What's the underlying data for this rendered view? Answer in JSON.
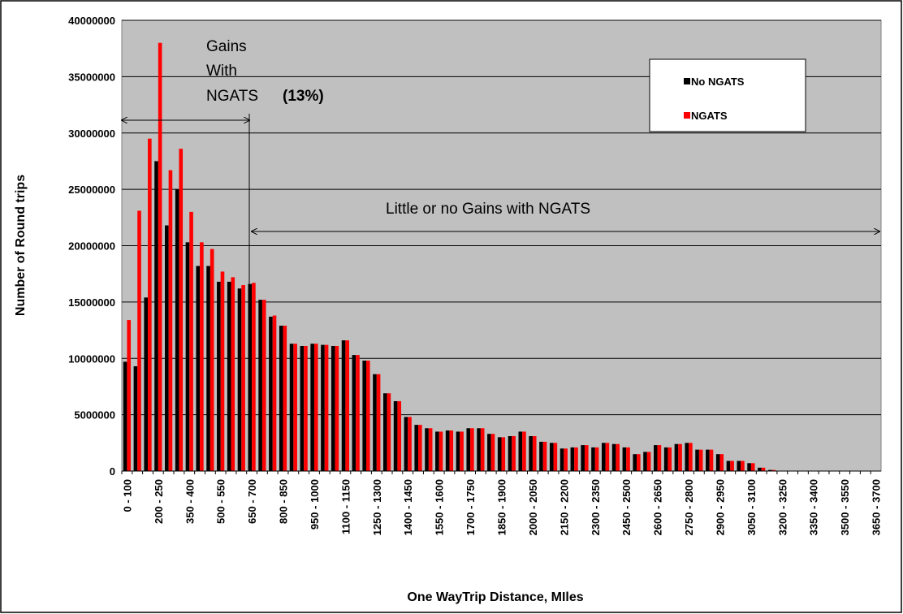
{
  "chart_data": {
    "type": "bar",
    "x_label": "One WayTrip Distance, MIles",
    "y_label": "Number of Round trips",
    "annotations": [
      "Gains",
      "With",
      "NGATS",
      "(13%)",
      "Little or no Gains with NGATS"
    ],
    "categories": [
      "0 - 100",
      null,
      null,
      "200 - 250",
      null,
      null,
      "350 - 400",
      null,
      null,
      "500 - 550",
      null,
      null,
      "650 - 700",
      null,
      null,
      "800 - 850",
      null,
      null,
      "950 - 1000",
      null,
      null,
      "1100 - 1150",
      null,
      null,
      "1250 - 1300",
      null,
      null,
      "1400 - 1450",
      null,
      null,
      "1550 - 1600",
      null,
      null,
      "1700 - 1750",
      null,
      null,
      "1850 - 1900",
      null,
      null,
      "2000 - 2050",
      null,
      null,
      "2150 - 2200",
      null,
      null,
      "2300 - 2350",
      null,
      null,
      "2450 - 2500",
      null,
      null,
      "2600 - 2650",
      null,
      null,
      "2750 - 2800",
      null,
      null,
      "2900 - 2950",
      null,
      null,
      "3050 - 3100",
      null,
      null,
      "3200 - 3250",
      null,
      null,
      "3350 - 3400",
      null,
      null,
      "3500 - 3550",
      null,
      null,
      "3650 - 3700"
    ],
    "series": [
      {
        "name": "No NGATS",
        "color": "#000000",
        "values": [
          9700000,
          9300000,
          15400000,
          27500000,
          21800000,
          25000000,
          20300000,
          18200000,
          18200000,
          16800000,
          16800000,
          16200000,
          16600000,
          15200000,
          13700000,
          12900000,
          11300000,
          11100000,
          11300000,
          11200000,
          11100000,
          11600000,
          10300000,
          9800000,
          8600000,
          6900000,
          6200000,
          4800000,
          4100000,
          3800000,
          3500000,
          3600000,
          3500000,
          3800000,
          3800000,
          3300000,
          3000000,
          3100000,
          3500000,
          3100000,
          2600000,
          2500000,
          2000000,
          2100000,
          2300000,
          2100000,
          2500000,
          2400000,
          2100000,
          1500000,
          1700000,
          2300000,
          2100000,
          2400000,
          2500000,
          1900000,
          1900000,
          1500000,
          900000,
          900000,
          700000,
          300000,
          100000,
          0,
          0,
          0,
          0,
          0,
          0,
          0,
          0,
          0,
          0
        ]
      },
      {
        "name": "NGATS",
        "color": "#ff0000",
        "values": [
          13400000,
          23100000,
          29500000,
          38000000,
          26700000,
          28600000,
          23000000,
          20300000,
          19700000,
          17700000,
          17200000,
          16500000,
          16700000,
          15200000,
          13800000,
          12900000,
          11300000,
          11100000,
          11300000,
          11200000,
          11100000,
          11600000,
          10300000,
          9800000,
          8600000,
          6900000,
          6200000,
          4800000,
          4100000,
          3800000,
          3500000,
          3600000,
          3500000,
          3800000,
          3800000,
          3300000,
          3000000,
          3100000,
          3500000,
          3100000,
          2600000,
          2500000,
          2000000,
          2100000,
          2300000,
          2100000,
          2500000,
          2400000,
          2100000,
          1500000,
          1700000,
          2300000,
          2100000,
          2400000,
          2500000,
          1900000,
          1900000,
          1500000,
          900000,
          900000,
          700000,
          300000,
          100000,
          0,
          0,
          0,
          0,
          0,
          0,
          0,
          0,
          0,
          0
        ]
      }
    ],
    "ylim": [
      0,
      40000000
    ],
    "yticks": [
      0,
      5000000,
      10000000,
      15000000,
      20000000,
      25000000,
      30000000,
      35000000,
      40000000
    ],
    "grid": true
  }
}
